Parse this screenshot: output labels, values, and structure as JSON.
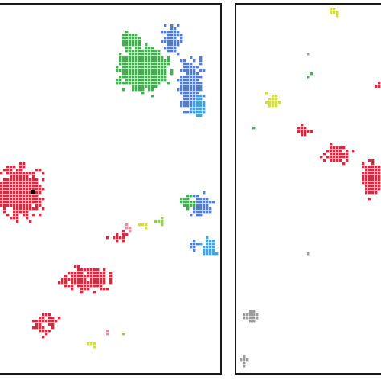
{
  "figure": {
    "panels": [
      {
        "name": "left",
        "clusters": [
          {
            "name": "green",
            "color": "#3cb54a"
          },
          {
            "name": "blue",
            "color": "#4f7fd6"
          },
          {
            "name": "cyan",
            "color": "#38a9e0"
          },
          {
            "name": "red",
            "color": "#e0283c"
          },
          {
            "name": "pink",
            "color": "#f08aa0"
          },
          {
            "name": "yellow",
            "color": "#d4e02a"
          },
          {
            "name": "lime",
            "color": "#8fd14f"
          }
        ],
        "marker_color": "#000000"
      },
      {
        "name": "right",
        "clusters": [
          {
            "name": "red",
            "color": "#e0283c"
          },
          {
            "name": "yellow",
            "color": "#d4e02a"
          },
          {
            "name": "gray",
            "color": "#9b9b9b"
          },
          {
            "name": "green",
            "color": "#3cb54a"
          }
        ]
      }
    ]
  }
}
